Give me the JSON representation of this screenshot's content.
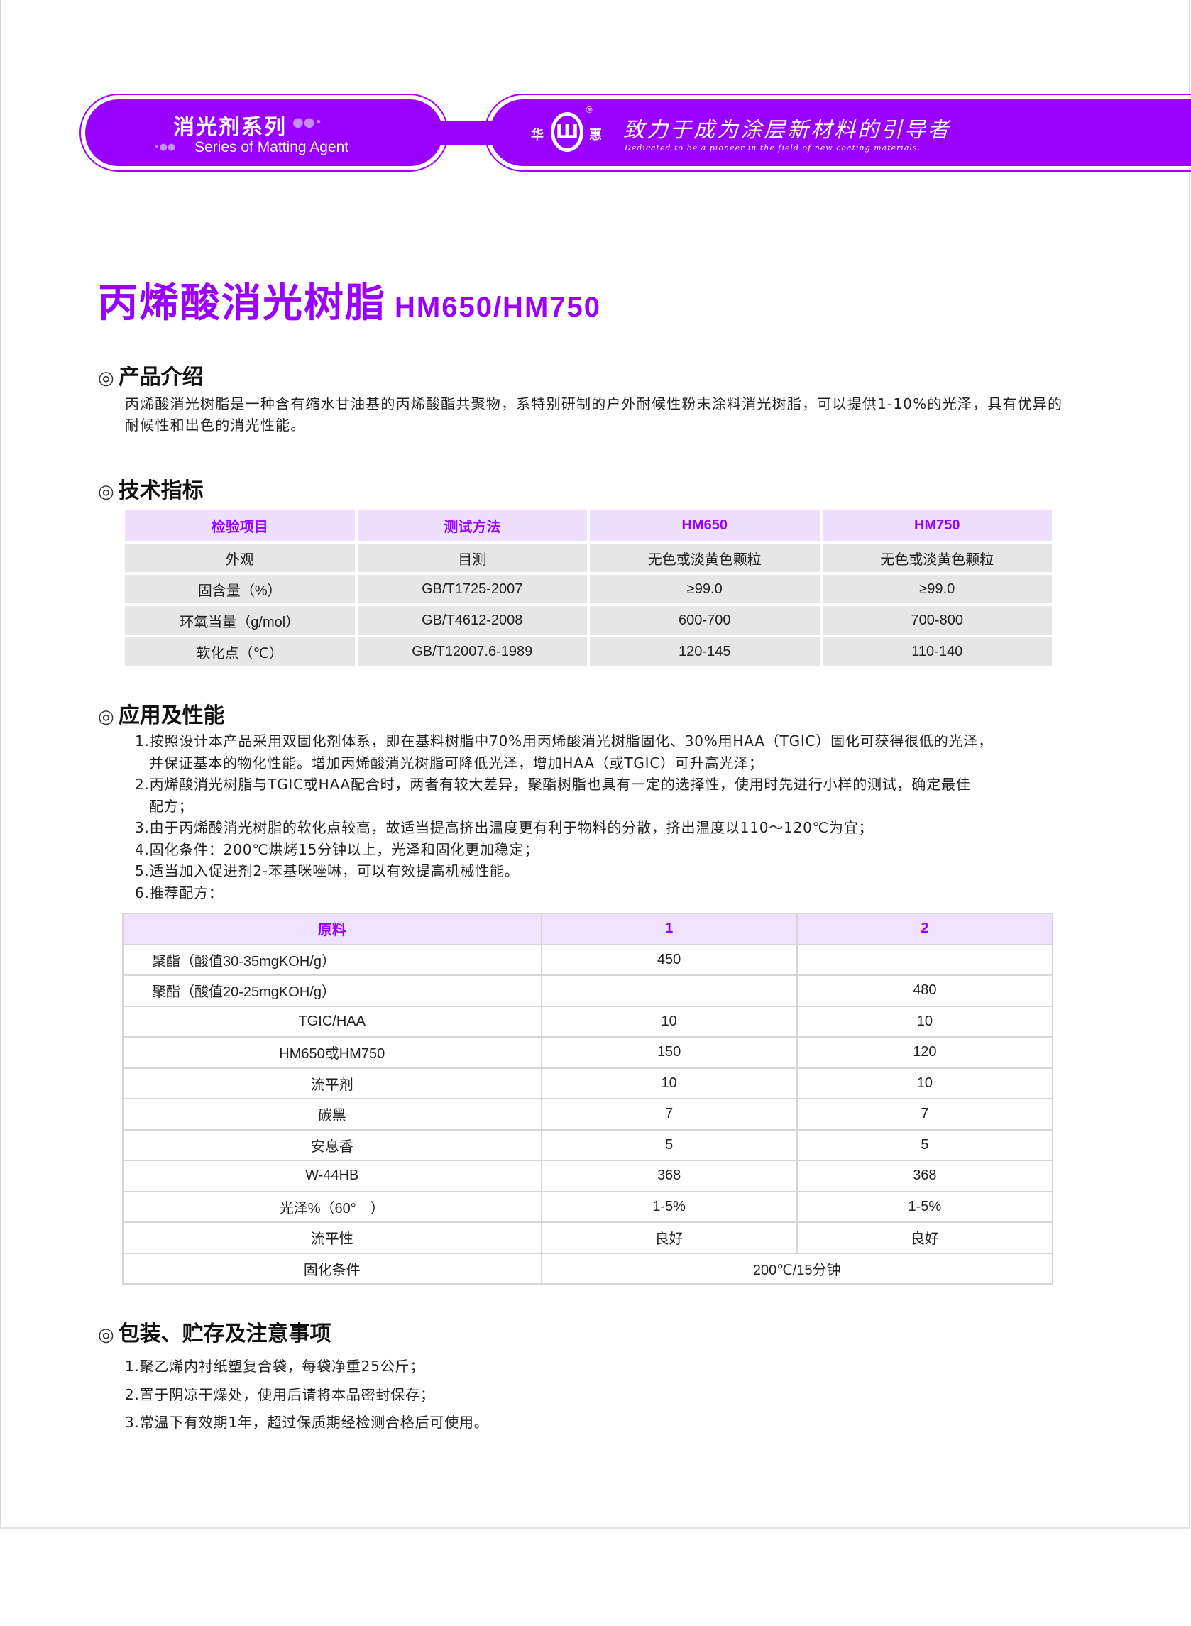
{
  "banner": {
    "series_cn": "消光剂系列",
    "series_en": "Series of Matting Agent",
    "logo_left": "华",
    "logo_right": "惠",
    "logo_reg": "®",
    "slogan_cn": "致力于成为涂层新材料的引导者",
    "slogan_en": "Dedicated to be a pioneer in the field of new coating materials.",
    "color": "#9900ff"
  },
  "title": {
    "cn": "丙烯酸消光树脂",
    "model": "HM650/HM750"
  },
  "intro": {
    "heading": "产品介绍",
    "text": "丙烯酸消光树脂是一种含有缩水甘油基的丙烯酸酯共聚物，系特别研制的户外耐候性粉末涂料消光树脂，可以提供1-10%的光泽，具有优异的耐候性和出色的消光性能。"
  },
  "specs": {
    "heading": "技术指标",
    "headers": [
      "检验项目",
      "测试方法",
      "HM650",
      "HM750"
    ],
    "rows": [
      [
        "外观",
        "目测",
        "无色或淡黄色颗粒",
        "无色或淡黄色颗粒"
      ],
      [
        "固含量（%）",
        "GB/T1725-2007",
        "≥99.0",
        "≥99.0"
      ],
      [
        "环氧当量（g/mol）",
        "GB/T4612-2008",
        "600-700",
        "700-800"
      ],
      [
        "软化点（℃）",
        "GB/T12007.6-1989",
        "120-145",
        "110-140"
      ]
    ]
  },
  "application": {
    "heading": "应用及性能",
    "items": [
      "1.按照设计本产品采用双固化剂体系，即在基料树脂中70%用丙烯酸消光树脂固化、30%用HAA（TGIC）固化可获得很低的光泽，",
      "并保证基本的物化性能。增加丙烯酸消光树脂可降低光泽，增加HAA（或TGIC）可升高光泽；",
      "2.丙烯酸消光树脂与TGIC或HAA配合时，两者有较大差异，聚酯树脂也具有一定的选择性，使用时先进行小样的测试，确定最佳",
      "配方；",
      "3.由于丙烯酸消光树脂的软化点较高，故适当提高挤出温度更有利于物料的分散，挤出温度以110～120℃为宜；",
      "4.固化条件：200℃烘烤15分钟以上，光泽和固化更加稳定；",
      "5.适当加入促进剂2-苯基咪唑啉，可以有效提高机械性能。",
      "6.推荐配方："
    ]
  },
  "formula": {
    "headers": [
      "原料",
      "1",
      "2"
    ],
    "rows": [
      [
        "聚酯（酸值30-35mgKOH/g）",
        "450",
        ""
      ],
      [
        "聚酯（酸值20-25mgKOH/g）",
        "",
        "480"
      ],
      [
        "TGIC/HAA",
        "10",
        "10"
      ],
      [
        "HM650或HM750",
        "150",
        "120"
      ],
      [
        "流平剂",
        "10",
        "10"
      ],
      [
        "碳黑",
        "7",
        "7"
      ],
      [
        "安息香",
        "5",
        "5"
      ],
      [
        "W-44HB",
        "368",
        "368"
      ],
      [
        "光泽%（60°　）",
        "1-5%",
        "1-5%"
      ],
      [
        "流平性",
        "良好",
        "良好"
      ]
    ],
    "cure_label": "固化条件",
    "cure_value": "200℃/15分钟"
  },
  "packaging": {
    "heading": "包装、贮存及注意事项",
    "items": [
      "1.聚乙烯内衬纸塑复合袋，每袋净重25公斤；",
      "2.置于阴凉干燥处，使用后请将本品密封保存；",
      "3.常温下有效期1年，超过保质期经检测合格后可使用。"
    ]
  }
}
